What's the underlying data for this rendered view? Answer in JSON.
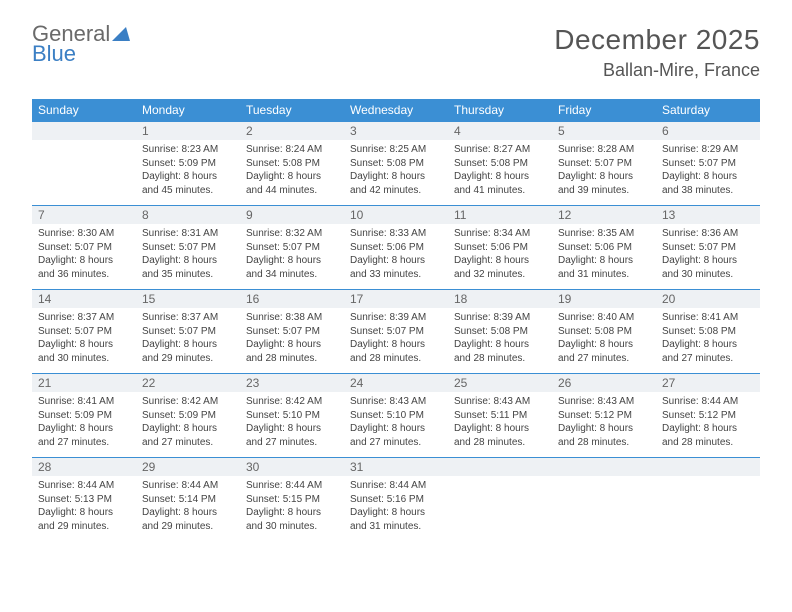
{
  "brand": {
    "name_a": "General",
    "name_b": "Blue"
  },
  "title": "December 2025",
  "location": "Ballan-Mire, France",
  "colors": {
    "header_bg": "#3b8fd4",
    "header_text": "#ffffff",
    "daynum_bg": "#eef1f4",
    "text": "#444444",
    "accent": "#3b7fc4"
  },
  "days_of_week": [
    "Sunday",
    "Monday",
    "Tuesday",
    "Wednesday",
    "Thursday",
    "Friday",
    "Saturday"
  ],
  "weeks": [
    [
      null,
      {
        "n": "1",
        "sr": "8:23 AM",
        "ss": "5:09 PM",
        "dl": "8 hours and 45 minutes."
      },
      {
        "n": "2",
        "sr": "8:24 AM",
        "ss": "5:08 PM",
        "dl": "8 hours and 44 minutes."
      },
      {
        "n": "3",
        "sr": "8:25 AM",
        "ss": "5:08 PM",
        "dl": "8 hours and 42 minutes."
      },
      {
        "n": "4",
        "sr": "8:27 AM",
        "ss": "5:08 PM",
        "dl": "8 hours and 41 minutes."
      },
      {
        "n": "5",
        "sr": "8:28 AM",
        "ss": "5:07 PM",
        "dl": "8 hours and 39 minutes."
      },
      {
        "n": "6",
        "sr": "8:29 AM",
        "ss": "5:07 PM",
        "dl": "8 hours and 38 minutes."
      }
    ],
    [
      {
        "n": "7",
        "sr": "8:30 AM",
        "ss": "5:07 PM",
        "dl": "8 hours and 36 minutes."
      },
      {
        "n": "8",
        "sr": "8:31 AM",
        "ss": "5:07 PM",
        "dl": "8 hours and 35 minutes."
      },
      {
        "n": "9",
        "sr": "8:32 AM",
        "ss": "5:07 PM",
        "dl": "8 hours and 34 minutes."
      },
      {
        "n": "10",
        "sr": "8:33 AM",
        "ss": "5:06 PM",
        "dl": "8 hours and 33 minutes."
      },
      {
        "n": "11",
        "sr": "8:34 AM",
        "ss": "5:06 PM",
        "dl": "8 hours and 32 minutes."
      },
      {
        "n": "12",
        "sr": "8:35 AM",
        "ss": "5:06 PM",
        "dl": "8 hours and 31 minutes."
      },
      {
        "n": "13",
        "sr": "8:36 AM",
        "ss": "5:07 PM",
        "dl": "8 hours and 30 minutes."
      }
    ],
    [
      {
        "n": "14",
        "sr": "8:37 AM",
        "ss": "5:07 PM",
        "dl": "8 hours and 30 minutes."
      },
      {
        "n": "15",
        "sr": "8:37 AM",
        "ss": "5:07 PM",
        "dl": "8 hours and 29 minutes."
      },
      {
        "n": "16",
        "sr": "8:38 AM",
        "ss": "5:07 PM",
        "dl": "8 hours and 28 minutes."
      },
      {
        "n": "17",
        "sr": "8:39 AM",
        "ss": "5:07 PM",
        "dl": "8 hours and 28 minutes."
      },
      {
        "n": "18",
        "sr": "8:39 AM",
        "ss": "5:08 PM",
        "dl": "8 hours and 28 minutes."
      },
      {
        "n": "19",
        "sr": "8:40 AM",
        "ss": "5:08 PM",
        "dl": "8 hours and 27 minutes."
      },
      {
        "n": "20",
        "sr": "8:41 AM",
        "ss": "5:08 PM",
        "dl": "8 hours and 27 minutes."
      }
    ],
    [
      {
        "n": "21",
        "sr": "8:41 AM",
        "ss": "5:09 PM",
        "dl": "8 hours and 27 minutes."
      },
      {
        "n": "22",
        "sr": "8:42 AM",
        "ss": "5:09 PM",
        "dl": "8 hours and 27 minutes."
      },
      {
        "n": "23",
        "sr": "8:42 AM",
        "ss": "5:10 PM",
        "dl": "8 hours and 27 minutes."
      },
      {
        "n": "24",
        "sr": "8:43 AM",
        "ss": "5:10 PM",
        "dl": "8 hours and 27 minutes."
      },
      {
        "n": "25",
        "sr": "8:43 AM",
        "ss": "5:11 PM",
        "dl": "8 hours and 28 minutes."
      },
      {
        "n": "26",
        "sr": "8:43 AM",
        "ss": "5:12 PM",
        "dl": "8 hours and 28 minutes."
      },
      {
        "n": "27",
        "sr": "8:44 AM",
        "ss": "5:12 PM",
        "dl": "8 hours and 28 minutes."
      }
    ],
    [
      {
        "n": "28",
        "sr": "8:44 AM",
        "ss": "5:13 PM",
        "dl": "8 hours and 29 minutes."
      },
      {
        "n": "29",
        "sr": "8:44 AM",
        "ss": "5:14 PM",
        "dl": "8 hours and 29 minutes."
      },
      {
        "n": "30",
        "sr": "8:44 AM",
        "ss": "5:15 PM",
        "dl": "8 hours and 30 minutes."
      },
      {
        "n": "31",
        "sr": "8:44 AM",
        "ss": "5:16 PM",
        "dl": "8 hours and 31 minutes."
      },
      null,
      null,
      null
    ]
  ],
  "labels": {
    "sunrise": "Sunrise:",
    "sunset": "Sunset:",
    "daylight": "Daylight:"
  }
}
